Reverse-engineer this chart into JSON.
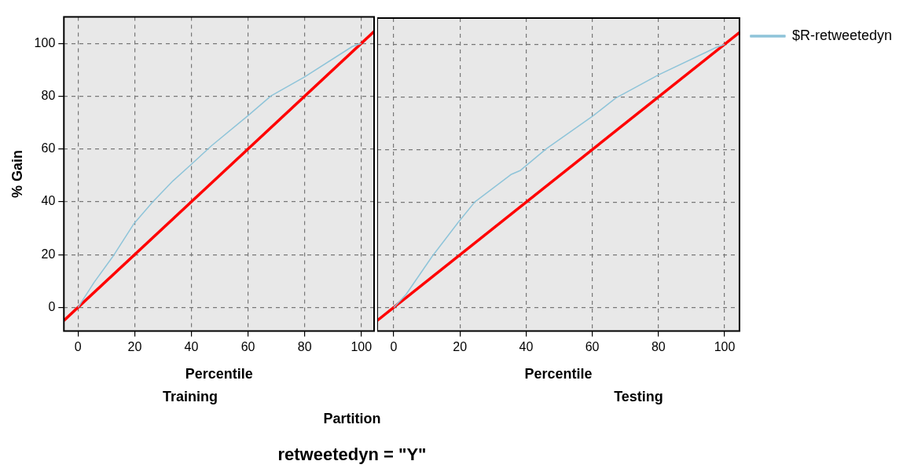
{
  "chart_data": [
    {
      "type": "line",
      "title": "Training",
      "xlabel": "Percentile",
      "ylabel": "% Gain",
      "xlim": [
        -5,
        104.5
      ],
      "ylim": [
        -9,
        110
      ],
      "xticks": [
        0,
        20,
        40,
        60,
        80,
        100
      ],
      "yticks": [
        0,
        20,
        40,
        60,
        80,
        100
      ],
      "grid": true,
      "line_style": "solid",
      "marker": "none",
      "annotations": [
        "Partition",
        "retweetedyn = \"Y\""
      ],
      "series": [
        {
          "color": "#8ec4d9",
          "x": [
            0,
            5.7,
            12.7,
            19.8,
            26.5,
            33.5,
            39.9,
            47.3,
            60.2,
            68.1,
            80,
            96.8,
            100
          ],
          "values": [
            0,
            9.5,
            19.9,
            31.8,
            40.1,
            47.9,
            54.1,
            61.4,
            72.8,
            80.1,
            87.3,
            98.8,
            100
          ]
        },
        {
          "color": "#ff0000",
          "x": [
            -5,
            104.5
          ],
          "values": [
            -5,
            104.5
          ]
        }
      ]
    },
    {
      "type": "line",
      "title": "Testing",
      "xlabel": "Percentile",
      "xlim": [
        -5,
        104.5
      ],
      "ylim": [
        -9,
        110
      ],
      "xticks": [
        0,
        20,
        40,
        60,
        80,
        100
      ],
      "yticks": [
        0,
        20,
        40,
        60,
        80,
        100
      ],
      "grid": true,
      "tick_labels": "x",
      "legend": "right",
      "line_style": "solid",
      "marker": "none",
      "series": [
        {
          "name": "$R-retweetedyn",
          "color": "#8ec4d9",
          "x": [
            0,
            3.7,
            11.6,
            19.5,
            24.5,
            35.4,
            38.3,
            46.2,
            60.2,
            67.1,
            80,
            97.4,
            100
          ],
          "values": [
            0,
            4.9,
            19.4,
            32.4,
            40.1,
            50.5,
            52.1,
            60.4,
            72.8,
            79.6,
            88.4,
            98.8,
            100
          ]
        },
        {
          "color": "#ff0000",
          "x": [
            -5,
            104.5
          ],
          "values": [
            -5,
            104.5
          ]
        }
      ]
    }
  ]
}
